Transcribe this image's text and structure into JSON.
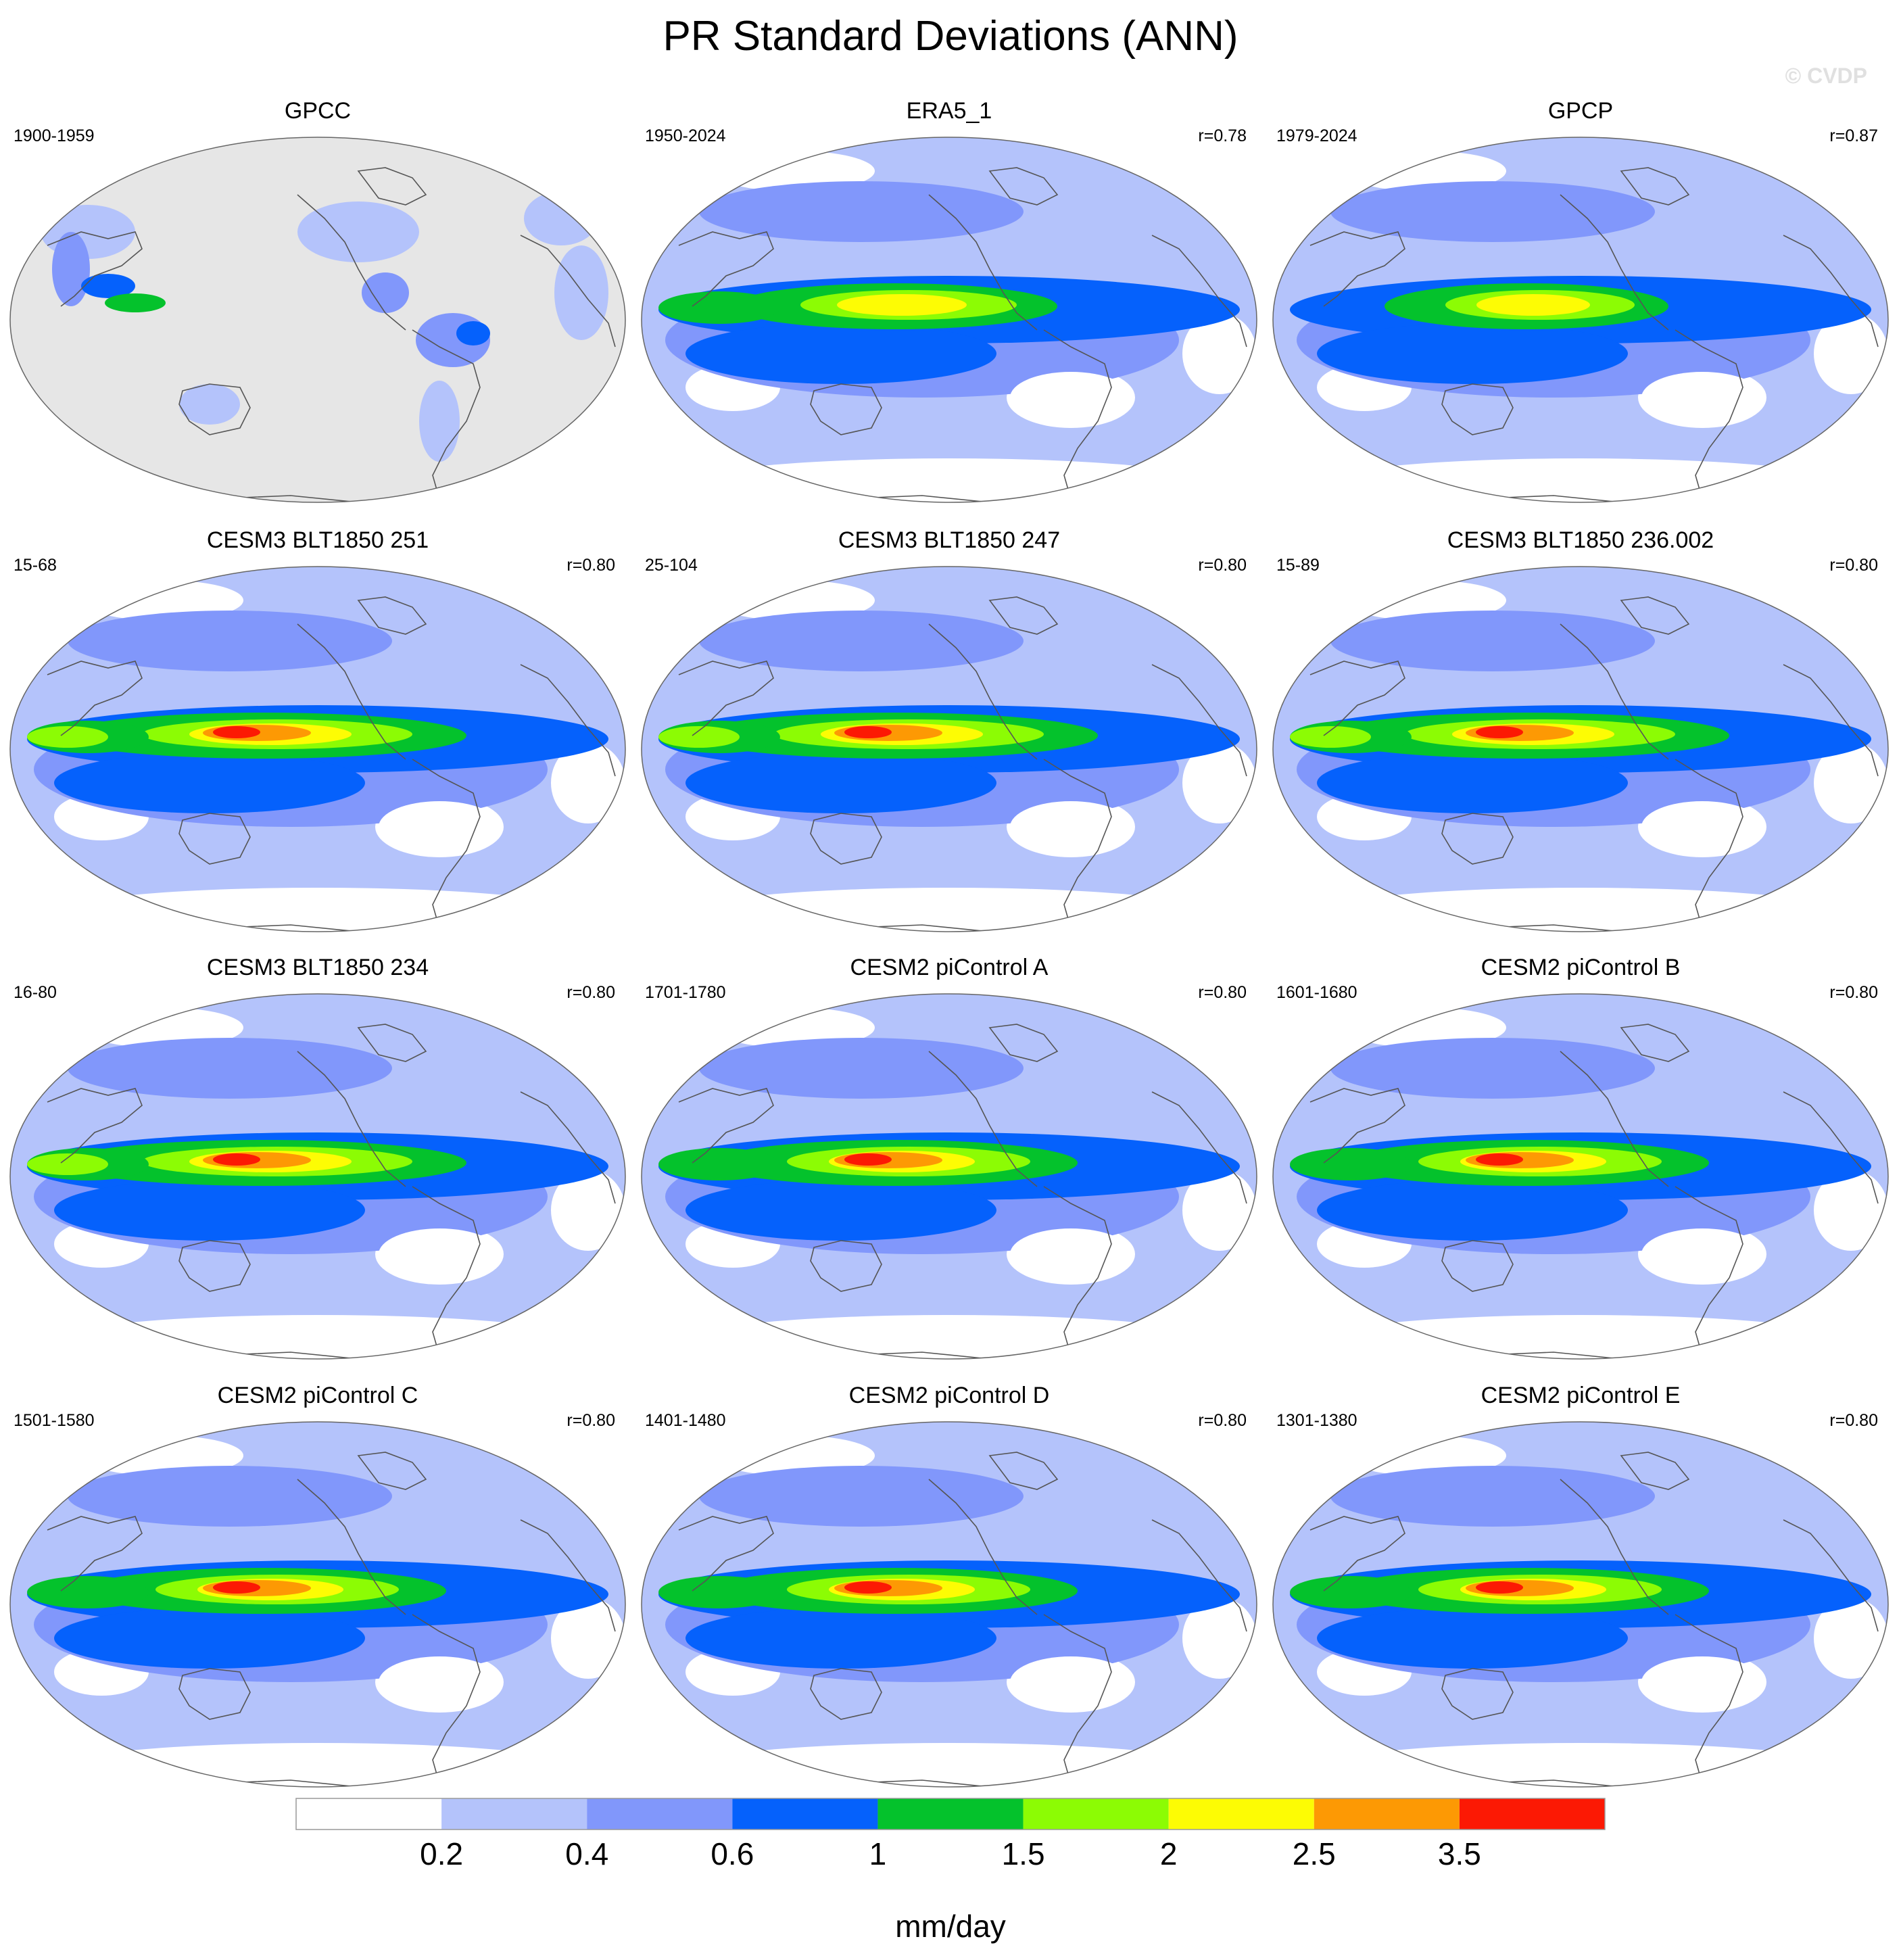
{
  "title": "PR Standard Deviations (ANN)",
  "watermark": "© CVDP",
  "colorbar": {
    "levels": [
      "0.2",
      "0.4",
      "0.6",
      "1",
      "1.5",
      "2",
      "2.5",
      "3.5"
    ],
    "colors": [
      "#ffffff",
      "#b4c3fb",
      "#8197fb",
      "#0561fc",
      "#04c22c",
      "#8cfc04",
      "#fdfc04",
      "#fd9904",
      "#fc1904"
    ],
    "unit": "mm/day"
  },
  "panels": [
    {
      "title": "GPCC",
      "period": "1900-1959",
      "corr": "",
      "style": "land"
    },
    {
      "title": "ERA5_1",
      "period": "1950-2024",
      "corr": "r=0.78",
      "style": "obs"
    },
    {
      "title": "GPCP",
      "period": "1979-2024",
      "corr": "r=0.87",
      "style": "obs2"
    },
    {
      "title": "CESM3 BLT1850 251",
      "period": "15-68",
      "corr": "r=0.80",
      "style": "model"
    },
    {
      "title": "CESM3 BLT1850 247",
      "period": "25-104",
      "corr": "r=0.80",
      "style": "model"
    },
    {
      "title": "CESM3 BLT1850 236.002",
      "period": "15-89",
      "corr": "r=0.80",
      "style": "model"
    },
    {
      "title": "CESM3 BLT1850 234",
      "period": "16-80",
      "corr": "r=0.80",
      "style": "model"
    },
    {
      "title": "CESM2 piControl A",
      "period": "1701-1780",
      "corr": "r=0.80",
      "style": "model2"
    },
    {
      "title": "CESM2 piControl B",
      "period": "1601-1680",
      "corr": "r=0.80",
      "style": "model2"
    },
    {
      "title": "CESM2 piControl C",
      "period": "1501-1580",
      "corr": "r=0.80",
      "style": "model2"
    },
    {
      "title": "CESM2 piControl D",
      "period": "1401-1480",
      "corr": "r=0.80",
      "style": "model2"
    },
    {
      "title": "CESM2 piControl E",
      "period": "1301-1380",
      "corr": "r=0.80",
      "style": "model2"
    }
  ]
}
